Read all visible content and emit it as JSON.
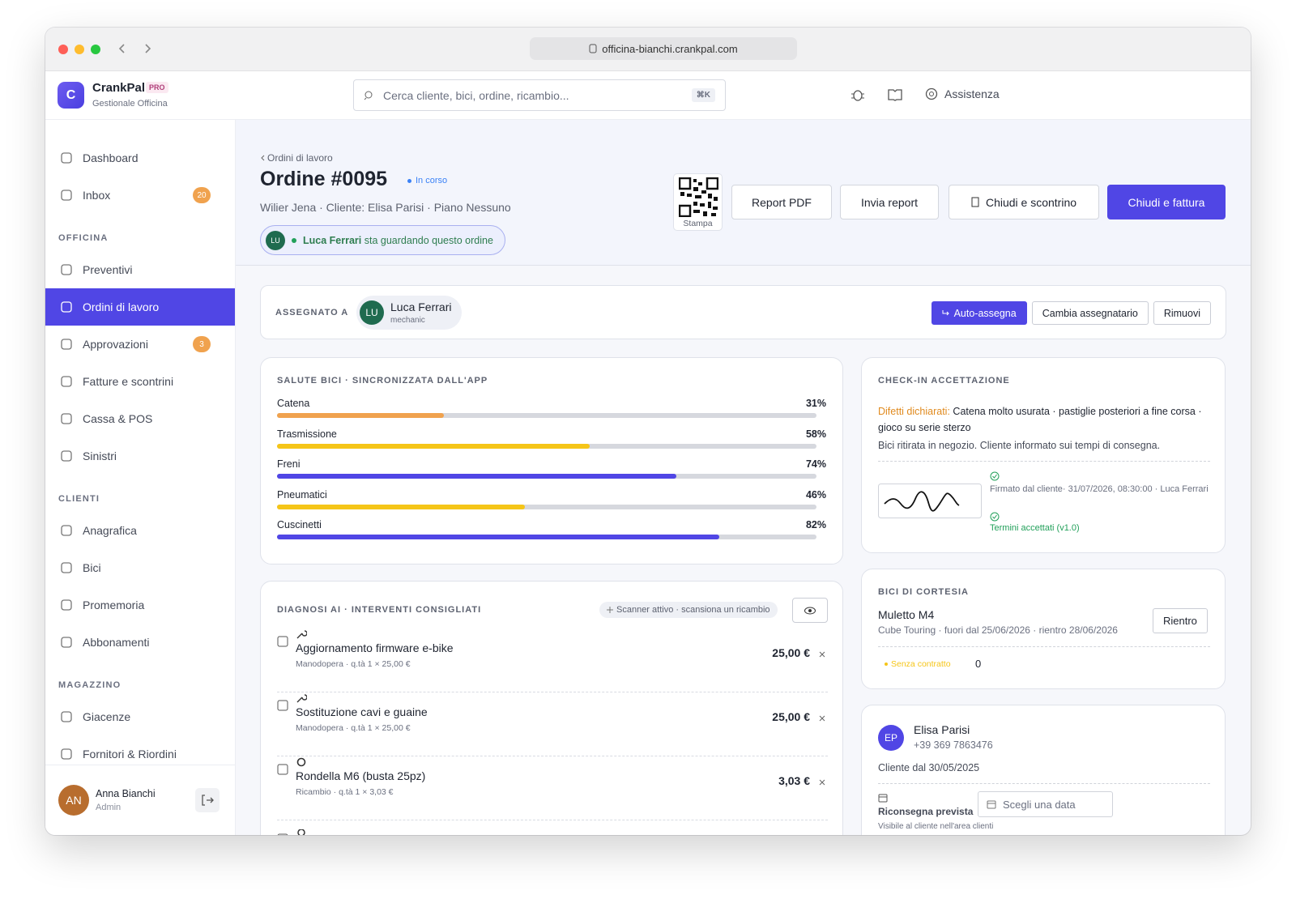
{
  "browser": {
    "url": "officina-bianchi.crankpal.com"
  },
  "brand": {
    "logo": "C",
    "name": "CrankPal",
    "badge": "PRO",
    "subtitle": "Gestionale Officina"
  },
  "search": {
    "placeholder": "Cerca cliente, bici, ordine, ricambio...",
    "shortcut": "⌘K"
  },
  "topbar": {
    "help": "Assistenza"
  },
  "sidebar": {
    "top": [
      {
        "label": "Dashboard"
      },
      {
        "label": "Inbox",
        "badge": 20
      }
    ],
    "sections": [
      {
        "title": "OFFICINA",
        "items": [
          {
            "label": "Preventivi"
          },
          {
            "label": "Ordini di lavoro",
            "active": true
          },
          {
            "label": "Approvazioni",
            "badge": 3
          },
          {
            "label": "Fatture e scontrini"
          },
          {
            "label": "Cassa & POS"
          },
          {
            "label": "Sinistri"
          }
        ]
      },
      {
        "title": "CLIENTI",
        "items": [
          {
            "label": "Anagrafica"
          },
          {
            "label": "Bici"
          },
          {
            "label": "Promemoria"
          },
          {
            "label": "Abbonamenti"
          }
        ]
      },
      {
        "title": "MAGAZZINO",
        "items": [
          {
            "label": "Giacenze"
          },
          {
            "label": "Fornitori & Riordini"
          }
        ]
      }
    ],
    "user": {
      "initials": "AN",
      "name": "Anna Bianchi",
      "role": "Admin"
    }
  },
  "order": {
    "breadcrumb": "Ordini di lavoro",
    "title": "Ordine #0095",
    "status": "In corso",
    "subtitle": "Wilier Jena · Cliente: Elisa Parisi · Piano Nessuno",
    "viewer": {
      "initials": "LU",
      "name": "Luca Ferrari",
      "text": "sta guardando questo ordine"
    },
    "qr_label": "Stampa",
    "actions": [
      "Report PDF",
      "Invia report",
      "Chiudi e scontrino",
      "Chiudi e fattura"
    ]
  },
  "assignment": {
    "label": "ASSEGNATO A",
    "initials": "LU",
    "name": "Luca Ferrari",
    "role": "mechanic",
    "actions": [
      "Auto-assegna",
      "Cambia assegnatario",
      "Rimuovi"
    ]
  },
  "health": {
    "title": "SALUTE BICI · SINCRONIZZATA DALL'APP",
    "xlim": [
      0,
      100
    ],
    "categories": [
      "Catena",
      "Trasmissione",
      "Freni",
      "Pneumatici",
      "Cuscinetti"
    ],
    "values": [
      31,
      58,
      74,
      46,
      82
    ],
    "value_labels": [
      "31%",
      "58%",
      "74%",
      "46%",
      "82%"
    ],
    "colors": [
      "#f0a24e",
      "#f5c518",
      "#5046e5",
      "#f5c518",
      "#5046e5"
    ]
  },
  "diagnosis": {
    "title": "DIAGNOSI AI · INTERVENTI CONSIGLIATI",
    "scanner": "Scanner attivo · scansiona un ricambio",
    "items": [
      {
        "name": "Aggiornamento firmware e-bike",
        "detail": "Manodopera · q.tà 1 × 25,00 €",
        "price": "25,00 €"
      },
      {
        "name": "Sostituzione cavi e guaine",
        "detail": "Manodopera · q.tà 1 × 25,00 €",
        "price": "25,00 €"
      },
      {
        "name": "Rondella M6 (busta 25pz)",
        "detail": "Ricambio · q.tà 1 × 3,03 €",
        "price": "3,03 €"
      }
    ]
  },
  "checkin": {
    "title": "CHECK-IN ACCETTAZIONE",
    "defects_label": "Difetti dichiarati:",
    "defects": "Catena molto usurata · pastiglie posteriori a fine corsa · gioco su serie sterzo",
    "note": "Bici ritirata in negozio. Cliente informato sui tempi di consegna.",
    "signed": "Firmato dal cliente· 31/07/2026, 08:30:00 · Luca Ferrari",
    "terms": "Termini accettati (v1.0)"
  },
  "courtesy": {
    "title": "BICI DI CORTESIA",
    "bike": "Muletto M4",
    "detail": "Cube Touring · fuori dal 25/06/2026 · rientro 28/06/2026",
    "action": "Rientro",
    "contract": "Senza contratto",
    "count": 0
  },
  "customer": {
    "initials": "EP",
    "name": "Elisa Parisi",
    "phone": "+39 369 7863476",
    "since": "Cliente dal 30/05/2025",
    "return_label": "Riconsegna prevista",
    "date_placeholder": "Scegli una data",
    "note": "Visibile al cliente nell'area clienti"
  }
}
